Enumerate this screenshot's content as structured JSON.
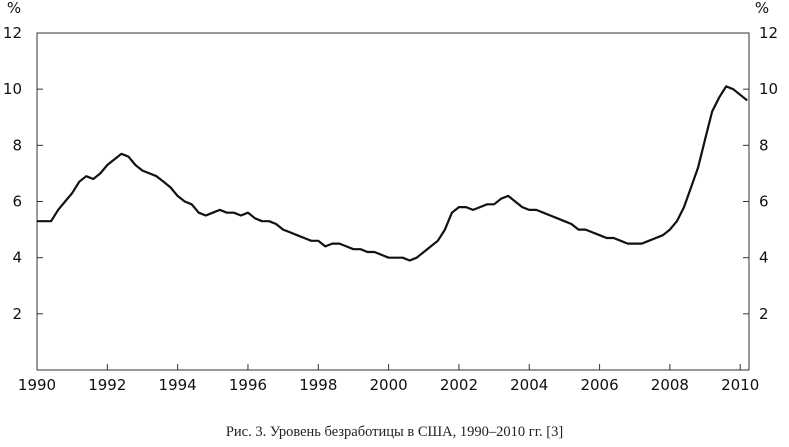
{
  "chart_data": {
    "type": "line",
    "title": "",
    "caption": "Рис. 3. Уровень безработицы в США, 1990–2010 гг. [3]",
    "xlabel": "",
    "ylabel_left": "%",
    "ylabel_right": "%",
    "xlim": [
      1990,
      2010.25
    ],
    "ylim": [
      0,
      12
    ],
    "x_ticks": [
      "1990",
      "1992",
      "1994",
      "1996",
      "1998",
      "2000",
      "2002",
      "2004",
      "2006",
      "2008",
      "2010"
    ],
    "y_ticks": [
      "2",
      "4",
      "6",
      "8",
      "10",
      "12"
    ],
    "grid": false,
    "legend": "none",
    "line_color": "#111111",
    "series": [
      {
        "x": [
          1990.0,
          1990.2,
          1990.4,
          1990.6,
          1990.8,
          1991.0,
          1991.2,
          1991.4,
          1991.6,
          1991.8,
          1992.0,
          1992.2,
          1992.4,
          1992.6,
          1992.8,
          1993.0,
          1993.2,
          1993.4,
          1993.6,
          1993.8,
          1994.0,
          1994.2,
          1994.4,
          1994.6,
          1994.8,
          1995.0,
          1995.2,
          1995.4,
          1995.6,
          1995.8,
          1996.0,
          1996.2,
          1996.4,
          1996.6,
          1996.8,
          1997.0,
          1997.2,
          1997.4,
          1997.6,
          1997.8,
          1998.0,
          1998.2,
          1998.4,
          1998.6,
          1998.8,
          1999.0,
          1999.2,
          1999.4,
          1999.6,
          1999.8,
          2000.0,
          2000.2,
          2000.4,
          2000.6,
          2000.8,
          2001.0,
          2001.2,
          2001.4,
          2001.6,
          2001.8,
          2002.0,
          2002.2,
          2002.4,
          2002.6,
          2002.8,
          2003.0,
          2003.2,
          2003.4,
          2003.6,
          2003.8,
          2004.0,
          2004.2,
          2004.4,
          2004.6,
          2004.8,
          2005.0,
          2005.2,
          2005.4,
          2005.6,
          2005.8,
          2006.0,
          2006.2,
          2006.4,
          2006.6,
          2006.8,
          2007.0,
          2007.2,
          2007.4,
          2007.6,
          2007.8,
          2008.0,
          2008.2,
          2008.4,
          2008.6,
          2008.8,
          2009.0,
          2009.2,
          2009.4,
          2009.6,
          2009.8,
          2010.0,
          2010.2
        ],
        "y": [
          5.3,
          5.3,
          5.3,
          5.7,
          6.0,
          6.3,
          6.7,
          6.9,
          6.8,
          7.0,
          7.3,
          7.5,
          7.7,
          7.6,
          7.3,
          7.1,
          7.0,
          6.9,
          6.7,
          6.5,
          6.2,
          6.0,
          5.9,
          5.6,
          5.5,
          5.6,
          5.7,
          5.6,
          5.6,
          5.5,
          5.6,
          5.4,
          5.3,
          5.3,
          5.2,
          5.0,
          4.9,
          4.8,
          4.7,
          4.6,
          4.6,
          4.4,
          4.5,
          4.5,
          4.4,
          4.3,
          4.3,
          4.2,
          4.2,
          4.1,
          4.0,
          4.0,
          4.0,
          3.9,
          4.0,
          4.2,
          4.4,
          4.6,
          5.0,
          5.6,
          5.8,
          5.8,
          5.7,
          5.8,
          5.9,
          5.9,
          6.1,
          6.2,
          6.0,
          5.8,
          5.7,
          5.7,
          5.6,
          5.5,
          5.4,
          5.3,
          5.2,
          5.0,
          5.0,
          4.9,
          4.8,
          4.7,
          4.7,
          4.6,
          4.5,
          4.5,
          4.5,
          4.6,
          4.7,
          4.8,
          5.0,
          5.3,
          5.8,
          6.5,
          7.2,
          8.2,
          9.2,
          9.7,
          10.1,
          10.0,
          9.8,
          9.6
        ]
      }
    ]
  }
}
